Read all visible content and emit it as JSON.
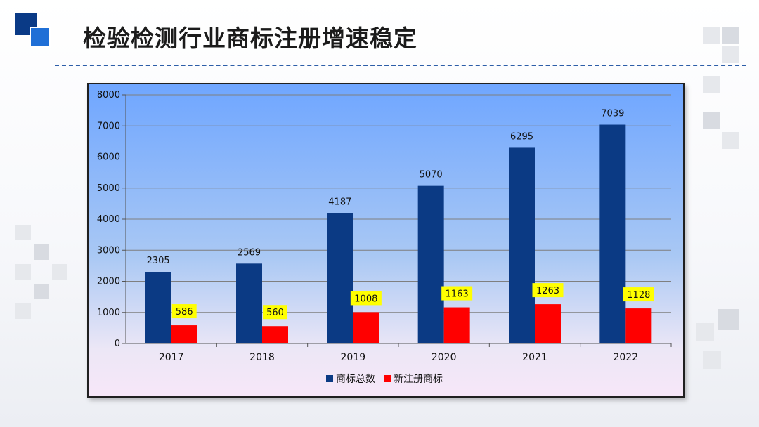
{
  "slide": {
    "title": "检验检测行业商标注册增速稳定"
  },
  "colors": {
    "accent_dark": "#0a3a86",
    "accent_light": "#1f6fd6",
    "series_total": "#0b3a84",
    "series_new": "#ff0000",
    "label_highlight": "#ffff00"
  },
  "chart_data": {
    "type": "bar",
    "categories": [
      "2017",
      "2018",
      "2019",
      "2020",
      "2021",
      "2022"
    ],
    "series": [
      {
        "name": "商标总数",
        "values": [
          2305,
          2569,
          4187,
          5070,
          6295,
          7039
        ]
      },
      {
        "name": "新注册商标",
        "values": [
          586,
          560,
          1008,
          1163,
          1263,
          1128
        ]
      }
    ],
    "ylim": [
      0,
      8000
    ],
    "yticks": [
      0,
      1000,
      2000,
      3000,
      4000,
      5000,
      6000,
      7000,
      8000
    ],
    "grid": true,
    "legend_position": "bottom-center",
    "title": "",
    "xlabel": "",
    "ylabel": ""
  }
}
